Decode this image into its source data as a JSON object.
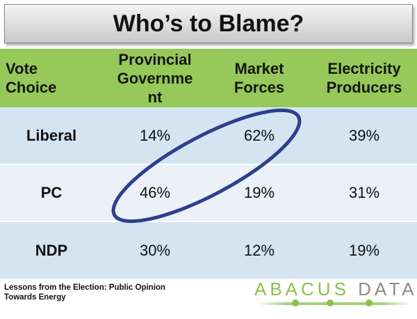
{
  "title": "Who’s to Blame?",
  "table": {
    "headers": [
      [
        "Vote",
        "Choice"
      ],
      [
        "Provincial",
        "Governme",
        "nt"
      ],
      [
        "Market",
        "Forces"
      ],
      [
        "Electricity",
        "Producers"
      ]
    ],
    "rows": [
      {
        "party": "Liberal",
        "provincial": "14%",
        "market": "62%",
        "electricity": "39%"
      },
      {
        "party": "PC",
        "provincial": "46%",
        "market": "19%",
        "electricity": "31%"
      },
      {
        "party": "NDP",
        "provincial": "30%",
        "market": "12%",
        "electricity": "19%"
      }
    ]
  },
  "highlight_color": "#2e3e8e",
  "footer": [
    "Lessons from the Election: Public Opinion",
    "Towards Energy"
  ],
  "logo": {
    "word1": "ABACUS",
    "word2": "DATA"
  },
  "colors": {
    "header_green": "#96c85a",
    "row_blue": "#d4e4f1",
    "row_blue_light": "#eaf1f8",
    "logo_green": "#8cc04a",
    "logo_gray": "#8a8a8a"
  }
}
